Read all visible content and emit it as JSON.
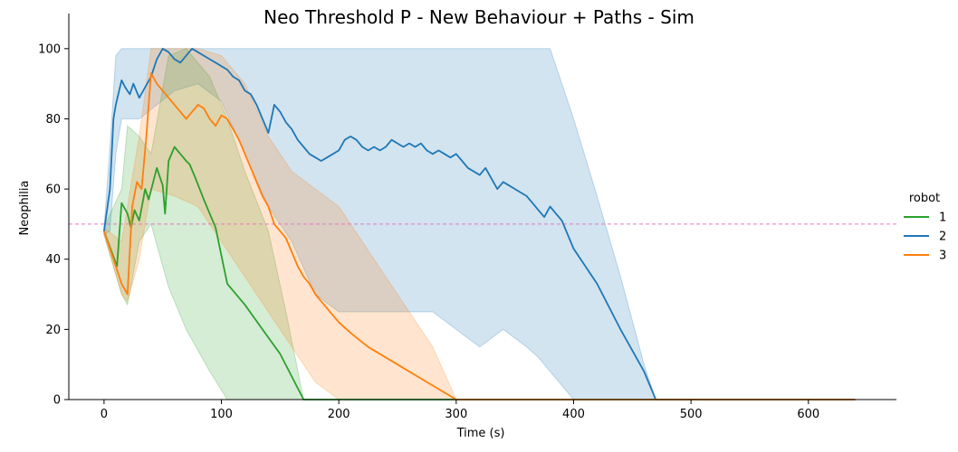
{
  "chart_data": {
    "type": "line",
    "title": "Neo Threshold P - New Behaviour + Paths - Sim",
    "xlabel": "Time (s)",
    "ylabel": "Neophilia",
    "xlim": [
      -30,
      675
    ],
    "ylim": [
      0,
      110
    ],
    "x_ticks": [
      0,
      100,
      200,
      300,
      400,
      500,
      600
    ],
    "y_ticks": [
      0,
      20,
      40,
      60,
      80,
      100
    ],
    "grid": false,
    "legend": {
      "title": "robot",
      "placement": "right"
    },
    "reference_line": {
      "y": 50,
      "color": "#e377c2",
      "style": "dashed"
    },
    "series": [
      {
        "name": "1",
        "color": "#2ca02c",
        "x": [
          0,
          11,
          15,
          20,
          23,
          26,
          30,
          35,
          38,
          45,
          50,
          52,
          55,
          60,
          65,
          70,
          73,
          78,
          85,
          90,
          95,
          105,
          120,
          135,
          150,
          170,
          200,
          250,
          300,
          350,
          400,
          470,
          500,
          550,
          600,
          640
        ],
        "y": [
          48,
          38,
          56,
          53,
          49,
          54,
          51,
          60,
          57,
          66,
          61,
          53,
          68,
          72,
          70,
          68,
          67,
          63,
          57,
          53,
          49,
          33,
          27,
          20,
          13,
          0,
          0,
          0,
          0,
          0,
          0,
          0,
          0,
          0,
          0,
          0
        ],
        "band_x": [
          0,
          15,
          20,
          30,
          40,
          55,
          70,
          90,
          105,
          120,
          140,
          155,
          170,
          200,
          300,
          400,
          500,
          640
        ],
        "band_low": [
          47,
          30,
          27,
          45,
          50,
          32,
          20,
          8,
          0,
          0,
          0,
          0,
          0,
          0,
          0,
          0,
          0,
          0
        ],
        "band_high": [
          49,
          60,
          78,
          75,
          70,
          98,
          100,
          92,
          80,
          65,
          48,
          25,
          0,
          0,
          0,
          0,
          0,
          0
        ]
      },
      {
        "name": "2",
        "color": "#1f77b4",
        "x": [
          0,
          5,
          8,
          10,
          15,
          18,
          22,
          25,
          30,
          35,
          40,
          45,
          50,
          55,
          60,
          65,
          70,
          75,
          80,
          85,
          90,
          95,
          100,
          105,
          110,
          115,
          120,
          125,
          130,
          135,
          140,
          145,
          150,
          155,
          160,
          165,
          170,
          175,
          180,
          185,
          190,
          195,
          200,
          205,
          210,
          215,
          220,
          225,
          230,
          235,
          240,
          245,
          250,
          255,
          260,
          265,
          270,
          275,
          280,
          285,
          290,
          295,
          300,
          305,
          310,
          315,
          320,
          325,
          330,
          335,
          340,
          345,
          350,
          355,
          360,
          365,
          370,
          375,
          380,
          385,
          390,
          400,
          420,
          440,
          460,
          470,
          500,
          550,
          600,
          640
        ],
        "y": [
          48,
          60,
          80,
          84,
          91,
          89,
          87,
          90,
          86,
          89,
          92,
          97,
          100,
          99,
          97,
          96,
          98,
          100,
          99,
          98,
          97,
          96,
          95,
          94,
          92,
          91,
          88,
          87,
          84,
          80,
          76,
          84,
          82,
          79,
          77,
          74,
          72,
          70,
          69,
          68,
          69,
          70,
          71,
          74,
          75,
          74,
          72,
          71,
          72,
          71,
          72,
          74,
          73,
          72,
          73,
          72,
          73,
          71,
          70,
          71,
          70,
          69,
          70,
          68,
          66,
          65,
          64,
          66,
          63,
          60,
          62,
          61,
          60,
          59,
          58,
          56,
          54,
          52,
          55,
          53,
          51,
          43,
          33,
          20,
          8,
          0,
          0,
          0,
          0,
          0
        ],
        "band_x": [
          0,
          5,
          10,
          15,
          30,
          60,
          80,
          100,
          120,
          140,
          160,
          180,
          200,
          220,
          240,
          260,
          280,
          300,
          320,
          340,
          360,
          370,
          380,
          400,
          420,
          440,
          460,
          470,
          500,
          640
        ],
        "band_low": [
          47,
          48,
          70,
          80,
          80,
          88,
          90,
          85,
          70,
          55,
          45,
          30,
          25,
          25,
          25,
          25,
          25,
          20,
          15,
          20,
          15,
          12,
          8,
          0,
          0,
          0,
          0,
          0,
          0,
          0
        ],
        "band_high": [
          49,
          72,
          98,
          100,
          100,
          100,
          100,
          100,
          100,
          100,
          100,
          100,
          100,
          100,
          100,
          100,
          100,
          100,
          100,
          100,
          100,
          100,
          100,
          80,
          58,
          35,
          10,
          0,
          0,
          0
        ]
      },
      {
        "name": "3",
        "color": "#ff7f0e",
        "x": [
          0,
          10,
          15,
          20,
          24,
          28,
          32,
          36,
          40,
          45,
          50,
          55,
          60,
          65,
          70,
          75,
          80,
          85,
          90,
          95,
          100,
          105,
          110,
          115,
          120,
          125,
          130,
          135,
          140,
          145,
          150,
          155,
          160,
          165,
          170,
          175,
          180,
          185,
          190,
          200,
          210,
          225,
          250,
          275,
          300,
          350,
          400,
          470,
          500,
          550,
          600,
          640
        ],
        "y": [
          48,
          38,
          33,
          30,
          55,
          62,
          60,
          75,
          93,
          90,
          88,
          86,
          84,
          82,
          80,
          82,
          84,
          83,
          80,
          78,
          81,
          80,
          77,
          74,
          70,
          66,
          62,
          58,
          55,
          50,
          48,
          46,
          42,
          38,
          35,
          33,
          30,
          28,
          26,
          22,
          19,
          15,
          10,
          5,
          0,
          0,
          0,
          0,
          0,
          0,
          0,
          0
        ],
        "band_x": [
          0,
          15,
          20,
          30,
          40,
          60,
          80,
          100,
          120,
          140,
          160,
          180,
          200,
          220,
          240,
          260,
          280,
          300,
          350,
          640
        ],
        "band_low": [
          47,
          30,
          28,
          40,
          60,
          58,
          55,
          45,
          35,
          25,
          15,
          5,
          0,
          0,
          0,
          0,
          0,
          0,
          0,
          0
        ],
        "band_high": [
          49,
          45,
          55,
          75,
          100,
          100,
          100,
          98,
          90,
          75,
          65,
          60,
          55,
          45,
          35,
          25,
          15,
          0,
          0,
          0
        ]
      }
    ]
  }
}
